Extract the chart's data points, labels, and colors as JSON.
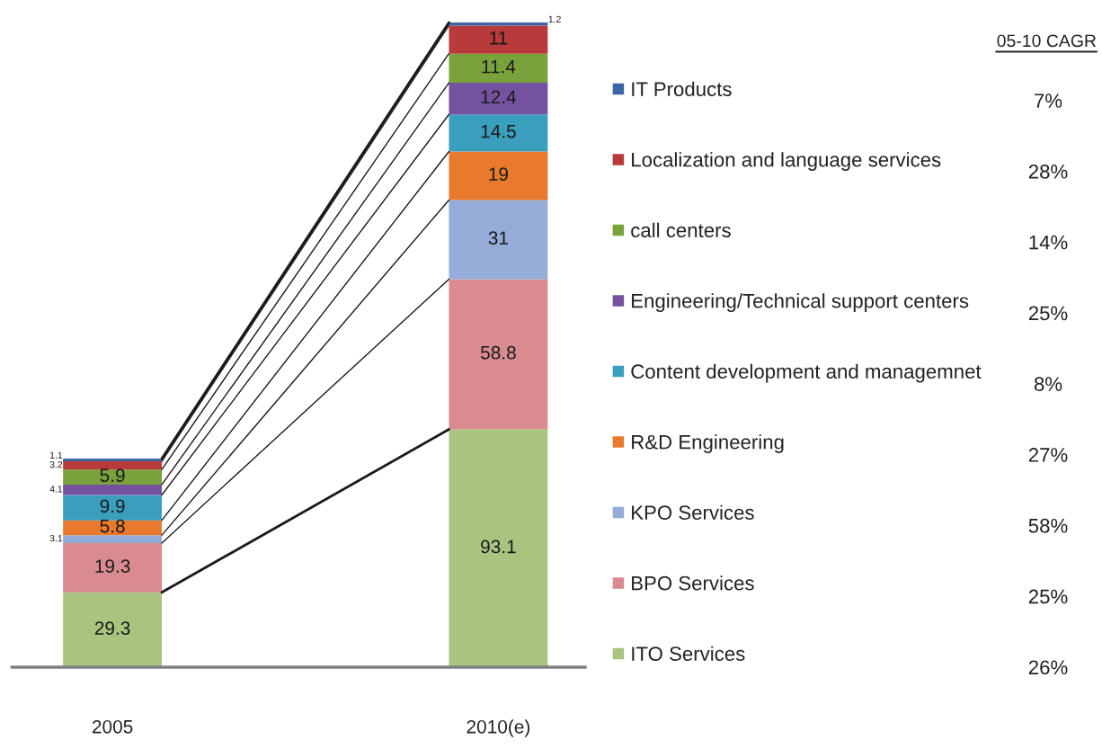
{
  "chart_data": {
    "type": "bar",
    "stacked": true,
    "categories": [
      "2005",
      "2010(e)"
    ],
    "series": [
      {
        "name": "ITO Services",
        "color": "#a9c47f",
        "values": [
          29.3,
          93.1
        ]
      },
      {
        "name": "BPO Services",
        "color": "#d98b8f",
        "values": [
          19.3,
          58.8
        ]
      },
      {
        "name": "KPO Services",
        "color": "#96acd8",
        "values": [
          3.1,
          31
        ]
      },
      {
        "name": "R&D Engineering",
        "color": "#e8792d",
        "values": [
          5.8,
          19
        ]
      },
      {
        "name": "Content development and managemnet",
        "color": "#3a9fbd",
        "values": [
          9.9,
          14.5
        ]
      },
      {
        "name": "Engineering/Technical support centers",
        "color": "#7452a0",
        "values": [
          4.1,
          12.4
        ]
      },
      {
        "name": "call centers",
        "color": "#7aa23c",
        "values": [
          5.9,
          11.4
        ]
      },
      {
        "name": "Localization and language services",
        "color": "#b83a3a",
        "values": [
          3.2,
          11
        ]
      },
      {
        "name": "IT Products",
        "color": "#3c64a6",
        "values": [
          1.1,
          1.2
        ]
      }
    ],
    "data_labels": true,
    "legend": "right",
    "tick_labels": "x",
    "annotations": [
      "05-10 CAGR",
      "7%",
      "28%",
      "14%",
      "25%",
      "8%",
      "27%",
      "58%",
      "25%",
      "26%"
    ]
  }
}
